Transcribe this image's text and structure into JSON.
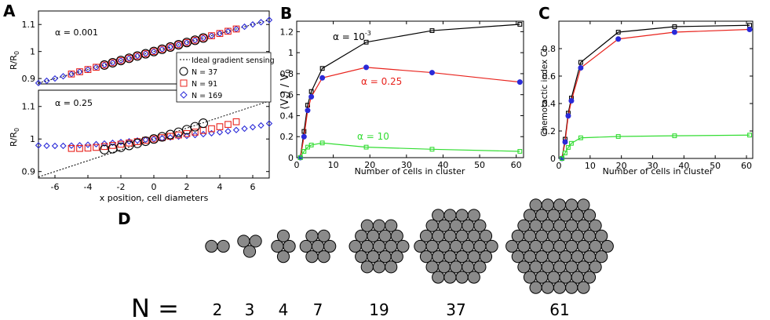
{
  "panel_labels": {
    "a": "A",
    "b": "B",
    "c": "C",
    "d": "D"
  },
  "colors": {
    "black": "#000000",
    "red": "#e8231d",
    "blue": "#2a2ad8",
    "green": "#33dd33",
    "cell_fill": "#8a8a8a"
  },
  "chart_data": [
    {
      "id": "A_top",
      "type": "scatter",
      "title": "",
      "annotation": "α = 0.001",
      "xlabel": "",
      "ylabel": "R/R",
      "ylabel_sub": "0",
      "xlim": [
        -7,
        7
      ],
      "ylim": [
        0.88,
        1.15
      ],
      "yticks": [
        0.9,
        1,
        1.1
      ],
      "ytick_labels": [
        "0.9",
        "1",
        "1.1"
      ],
      "ideal_line": {
        "slope": 0.01667,
        "intercept": 1.0
      },
      "series": [
        {
          "name": "N = 37",
          "marker": "circle",
          "color": "#000000",
          "slope": 0.01667,
          "x_start": -3.0,
          "x_end": 3.0,
          "step": 0.5
        },
        {
          "name": "N = 91",
          "marker": "square",
          "color": "#e8231d",
          "slope": 0.01667,
          "x_start": -5.0,
          "x_end": 5.0,
          "step": 0.5
        },
        {
          "name": "N = 169",
          "marker": "diamond",
          "color": "#2a2ad8",
          "slope": 0.01667,
          "x_start": -7.0,
          "x_end": 7.0,
          "step": 0.5
        }
      ]
    },
    {
      "id": "A_bottom",
      "type": "scatter",
      "title": "",
      "annotation": "α = 0.25",
      "xlabel": "x position, cell diameters",
      "ylabel": "R/R",
      "ylabel_sub": "0",
      "xlim": [
        -7,
        7
      ],
      "ylim": [
        0.88,
        1.15
      ],
      "xticks": [
        -6,
        -4,
        -2,
        0,
        2,
        4,
        6
      ],
      "xtick_labels": [
        "-6",
        "-4",
        "-2",
        "0",
        "2",
        "4",
        "6"
      ],
      "yticks": [
        0.9,
        1,
        1.1
      ],
      "ytick_labels": [
        "0.9",
        "1",
        "1.1"
      ],
      "ideal_line": {
        "slope": 0.01667,
        "intercept": 1.0
      },
      "series": [
        {
          "name": "N = 37",
          "marker": "circle",
          "color": "#000000",
          "slope": 0.0135,
          "x_start": -3.0,
          "x_end": 3.0,
          "step": 0.5,
          "edge_boost": 0.008
        },
        {
          "name": "N = 91",
          "marker": "square",
          "color": "#e8231d",
          "slope": 0.0082,
          "x_start": -5.0,
          "x_end": 5.0,
          "step": 0.5,
          "edge_boost": 0.012
        },
        {
          "name": "N = 169",
          "marker": "diamond",
          "color": "#2a2ad8",
          "slope": 0.0048,
          "x_start": -7.0,
          "x_end": 7.0,
          "step": 0.5,
          "edge_boost": 0.014
        }
      ],
      "legend": {
        "placement": "top-right",
        "entries": [
          "Ideal gradient sensing",
          "N = 37",
          "N = 91",
          "N = 169"
        ]
      }
    },
    {
      "id": "B",
      "type": "line",
      "xlabel": "Number of cells in cluster",
      "ylabel": "⟨V",
      "ylabel_parts": [
        "⟨V",
        "x",
        "⟩ / V",
        "0"
      ],
      "xlim": [
        0,
        62
      ],
      "ylim": [
        0,
        1.3
      ],
      "xticks": [
        0,
        10,
        20,
        30,
        40,
        50,
        60
      ],
      "xtick_labels": [
        "0",
        "10",
        "20",
        "30",
        "40",
        "50",
        "60"
      ],
      "yticks": [
        0,
        0.2,
        0.4,
        0.6,
        0.8,
        1,
        1.2
      ],
      "ytick_labels": [
        "0",
        "0.2",
        "0.4",
        "0.6",
        "0.8",
        "1",
        "1.2"
      ],
      "x": [
        1,
        2,
        3,
        4,
        7,
        19,
        37,
        61
      ],
      "series": [
        {
          "name": "α = 10",
          "label_base": "α = 10",
          "label_sup": "-3",
          "color": "#000000",
          "marker": "square",
          "values": [
            0.0,
            0.25,
            0.5,
            0.63,
            0.85,
            1.1,
            1.21,
            1.27
          ]
        },
        {
          "name": "α = 0.25",
          "label_base": "α = 0.25",
          "label_sup": "",
          "color": "#e8231d",
          "marker": "circle-blue",
          "values": [
            0.0,
            0.2,
            0.45,
            0.58,
            0.76,
            0.86,
            0.81,
            0.72
          ]
        },
        {
          "name": "α = 10",
          "label_base": "α = 10",
          "label_sup": "",
          "color": "#33dd33",
          "marker": "square",
          "values": [
            0.0,
            0.06,
            0.1,
            0.12,
            0.14,
            0.1,
            0.08,
            0.06
          ]
        }
      ]
    },
    {
      "id": "C",
      "type": "line",
      "xlabel": "Number of cells in cluster",
      "ylabel": "Chemotactic index CI",
      "xlim": [
        0,
        62
      ],
      "ylim": [
        0,
        1.0
      ],
      "xticks": [
        0,
        10,
        20,
        30,
        40,
        50,
        60
      ],
      "xtick_labels": [
        "0",
        "10",
        "20",
        "30",
        "40",
        "50",
        "60"
      ],
      "yticks": [
        0,
        0.2,
        0.4,
        0.6,
        0.8
      ],
      "ytick_labels": [
        "0",
        "0.2",
        "0.4",
        "0.6",
        "0.8"
      ],
      "x": [
        1,
        2,
        3,
        4,
        7,
        19,
        37,
        61
      ],
      "series": [
        {
          "name": "α = 10^-3",
          "color": "#000000",
          "marker": "square",
          "values": [
            0.0,
            0.14,
            0.33,
            0.44,
            0.7,
            0.92,
            0.96,
            0.97
          ]
        },
        {
          "name": "α = 0.25",
          "color": "#e8231d",
          "marker": "circle-blue",
          "values": [
            0.0,
            0.12,
            0.31,
            0.42,
            0.66,
            0.87,
            0.92,
            0.94
          ]
        },
        {
          "name": "α = 10",
          "color": "#33dd33",
          "marker": "square",
          "values": [
            0.0,
            0.04,
            0.08,
            0.11,
            0.15,
            0.16,
            0.165,
            0.17
          ]
        }
      ]
    }
  ],
  "clusters": {
    "prefix": "N =",
    "counts": [
      2,
      3,
      4,
      7,
      19,
      37,
      61
    ],
    "labels": [
      "2",
      "3",
      "4",
      "7",
      "19",
      "37",
      "61"
    ]
  }
}
